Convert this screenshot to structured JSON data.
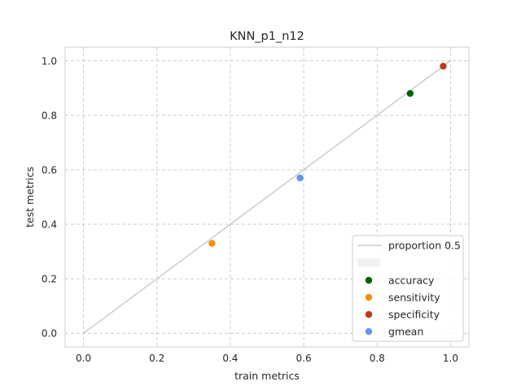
{
  "chart_data": {
    "type": "scatter",
    "title": "KNN_p1_n12",
    "xlabel": "train metrics",
    "ylabel": "test metrics",
    "xlim": [
      -0.05,
      1.05
    ],
    "ylim": [
      -0.05,
      1.05
    ],
    "xticks": [
      0.0,
      0.2,
      0.4,
      0.6,
      0.8,
      1.0
    ],
    "yticks": [
      0.0,
      0.2,
      0.4,
      0.6,
      0.8,
      1.0
    ],
    "xtick_labels": [
      "0.0",
      "0.2",
      "0.4",
      "0.6",
      "0.8",
      "1.0"
    ],
    "ytick_labels": [
      "0.0",
      "0.2",
      "0.4",
      "0.6",
      "0.8",
      "1.0"
    ],
    "grid": true,
    "legend_position": "lower-right",
    "line": {
      "name": "proportion 0.5",
      "x": [
        0.0,
        1.0
      ],
      "y": [
        0.0,
        1.0
      ],
      "color": "#cccccc"
    },
    "series": [
      {
        "name": "accuracy",
        "color": "#006400",
        "x": [
          0.89
        ],
        "y": [
          0.88
        ]
      },
      {
        "name": "sensitivity",
        "color": "#ff8c00",
        "x": [
          0.35
        ],
        "y": [
          0.33
        ]
      },
      {
        "name": "specificity",
        "color": "#c0391b",
        "x": [
          0.98
        ],
        "y": [
          0.98
        ]
      },
      {
        "name": "gmean",
        "color": "#6495ed",
        "x": [
          0.59
        ],
        "y": [
          0.57
        ]
      }
    ]
  }
}
